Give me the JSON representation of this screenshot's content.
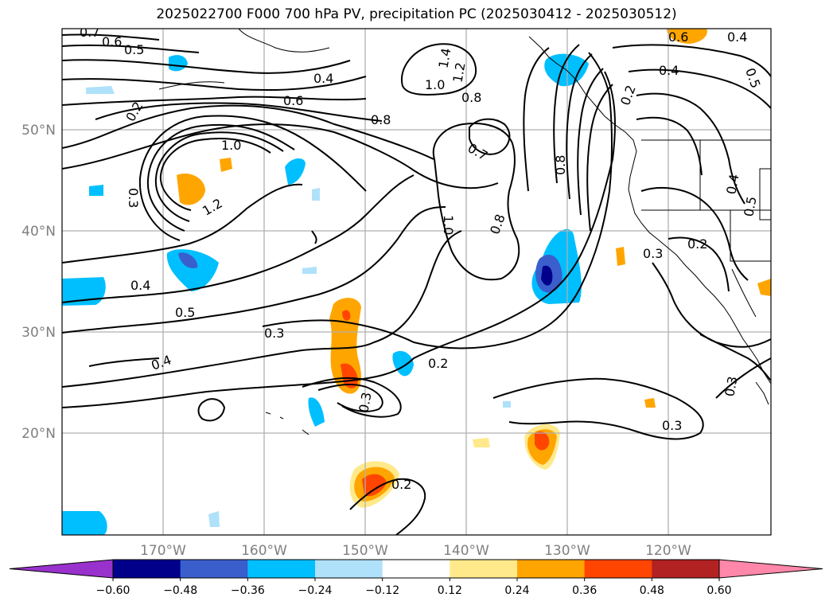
{
  "title": "2025022700 F000 700 hPa PV, precipitation PC (2025030412 - 2025030512)",
  "latitude_labels": [
    "50°N",
    "40°N",
    "30°N",
    "20°N"
  ],
  "longitude_labels": [
    "170°W",
    "160°W",
    "150°W",
    "140°W",
    "130°W",
    "120°W"
  ],
  "contour_labels": [
    "0.7",
    "0.6",
    "0.5",
    "0.4",
    "0.2",
    "0.6",
    "0.8",
    "1.0",
    "1.2",
    "1.4",
    "1.0",
    "0.8",
    "0.7",
    "0.8",
    "0.8",
    "1.0",
    "0.3",
    "1.2",
    "0.4",
    "0.5",
    "0.4",
    "0.3",
    "0.2",
    "0.3",
    "0.2",
    "0.2",
    "0.3",
    "0.3",
    "0.4",
    "0.5",
    "0.6",
    "0.4",
    "0.5",
    "0.4",
    "0.3",
    "0.2"
  ],
  "colorbar": {
    "ticks": [
      "−0.60",
      "−0.48",
      "−0.36",
      "−0.24",
      "−0.12",
      "0.12",
      "0.24",
      "0.36",
      "0.48",
      "0.60"
    ],
    "colors": [
      "#9932cc",
      "#00008b",
      "#3a5fcd",
      "#00bfff",
      "#afe1fa",
      "#ffffff",
      "#ffe98a",
      "#ffa500",
      "#ff4500",
      "#b22222",
      "#ff88aa"
    ]
  }
}
